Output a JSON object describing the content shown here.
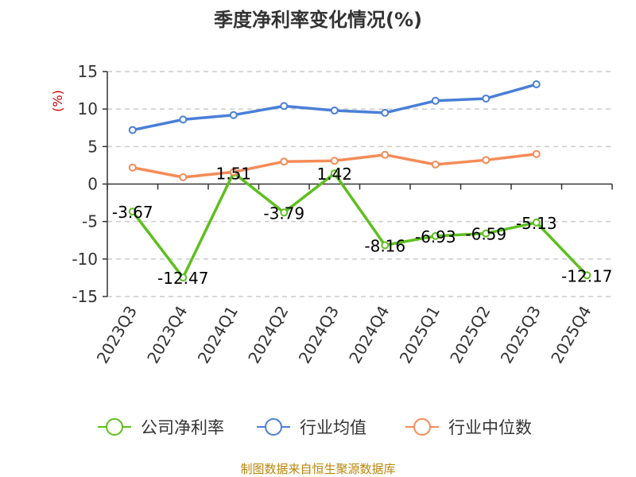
{
  "chart_data": {
    "type": "line",
    "title": "季度净利率变化情况(%)",
    "ylabel": "(%)",
    "ylim": [
      -15,
      15
    ],
    "yticks": [
      15,
      10,
      5,
      0,
      -5,
      -10,
      -15
    ],
    "grid": true,
    "legend_position": "bottom",
    "categories": [
      "2023Q3",
      "2023Q4",
      "2024Q1",
      "2024Q2",
      "2024Q3",
      "2024Q4",
      "2025Q1",
      "2025Q2",
      "2025Q3",
      "2025Q4"
    ],
    "series": [
      {
        "name": "公司净利率",
        "color": "#5dbf1f",
        "values": [
          -3.67,
          -12.47,
          1.51,
          -3.79,
          1.42,
          -8.16,
          -6.93,
          -6.59,
          -5.13,
          -12.17
        ],
        "data_labels": [
          "-3.67",
          "-12.47",
          "1.51",
          "-3.79",
          "1.42",
          "-8.16",
          "-6.93",
          "-6.59",
          "-5.13",
          "-12.17"
        ]
      },
      {
        "name": "行业均值",
        "color": "#4a7fd8",
        "values": [
          7.2,
          8.6,
          9.2,
          10.4,
          9.8,
          9.5,
          11.1,
          11.4,
          13.3,
          null
        ]
      },
      {
        "name": "行业中位数",
        "color": "#f58b57",
        "values": [
          2.2,
          0.9,
          1.6,
          3.0,
          3.1,
          3.9,
          2.6,
          3.2,
          4.0,
          null
        ]
      }
    ],
    "source": "制图数据来自恒生聚源数据库"
  }
}
